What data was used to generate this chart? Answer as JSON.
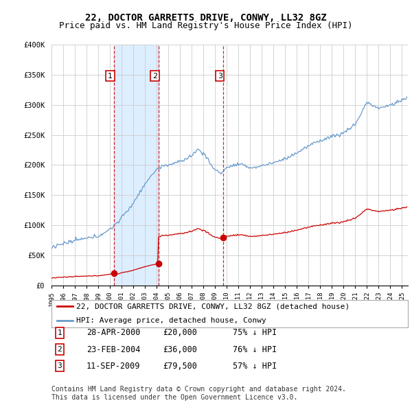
{
  "title": "22, DOCTOR GARRETTS DRIVE, CONWY, LL32 8GZ",
  "subtitle": "Price paid vs. HM Land Registry's House Price Index (HPI)",
  "ylim": [
    0,
    400000
  ],
  "yticks": [
    0,
    50000,
    100000,
    150000,
    200000,
    250000,
    300000,
    350000,
    400000
  ],
  "ytick_labels": [
    "£0",
    "£50K",
    "£100K",
    "£150K",
    "£200K",
    "£250K",
    "£300K",
    "£350K",
    "£400K"
  ],
  "background_color": "#ffffff",
  "plot_bg_color": "#ffffff",
  "shade_color": "#ddeeff",
  "grid_color": "#cccccc",
  "hpi_color": "#6699cc",
  "price_color": "#cc0000",
  "sale_marker_color": "#cc0000",
  "sale_dates": [
    2000.32,
    2004.14,
    2009.71
  ],
  "sale_prices": [
    20000,
    36000,
    79500
  ],
  "sale_labels": [
    "1",
    "2",
    "3"
  ],
  "legend_entries": [
    "22, DOCTOR GARRETTS DRIVE, CONWY, LL32 8GZ (detached house)",
    "HPI: Average price, detached house, Conwy"
  ],
  "table_rows": [
    [
      "1",
      "28-APR-2000",
      "£20,000",
      "75% ↓ HPI"
    ],
    [
      "2",
      "23-FEB-2004",
      "£36,000",
      "76% ↓ HPI"
    ],
    [
      "3",
      "11-SEP-2009",
      "£79,500",
      "57% ↓ HPI"
    ]
  ],
  "footer": "Contains HM Land Registry data © Crown copyright and database right 2024.\nThis data is licensed under the Open Government Licence v3.0.",
  "title_fontsize": 10,
  "subtitle_fontsize": 9,
  "axis_fontsize": 7.5,
  "legend_fontsize": 8,
  "table_fontsize": 8.5,
  "footer_fontsize": 7
}
